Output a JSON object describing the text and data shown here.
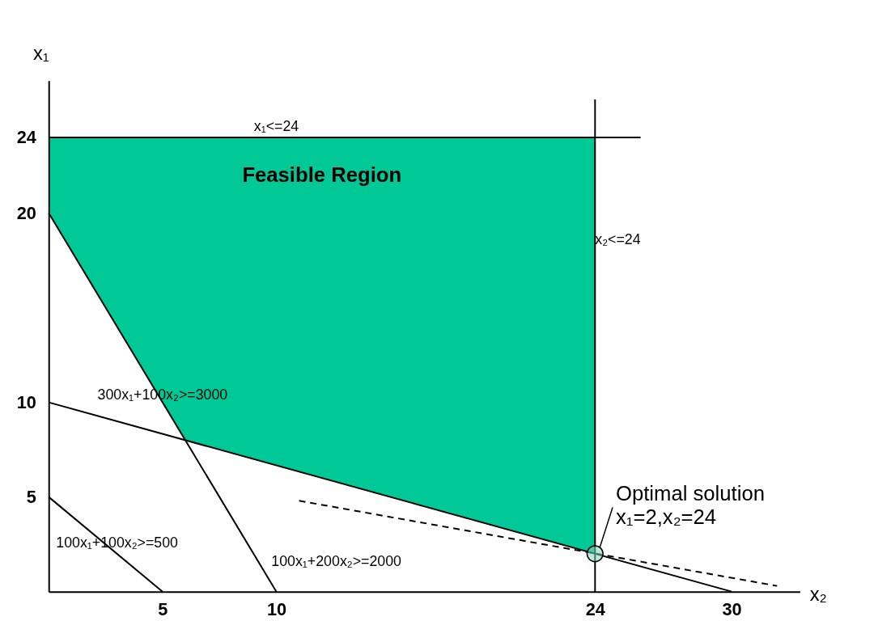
{
  "chart_data": {
    "type": "line",
    "xlabel": "x₂",
    "ylabel": "x₁",
    "xlim": [
      0,
      33
    ],
    "ylim": [
      0,
      27
    ],
    "xticks": [
      5,
      10,
      24,
      30
    ],
    "yticks": [
      5,
      10,
      20,
      24
    ],
    "grid": false,
    "series": [
      {
        "type": "area",
        "color": "#00c896",
        "x": [
          0,
          24
        ],
        "values": [
          24,
          24
        ]
      },
      {
        "type": "area",
        "color": "#ffffff",
        "x": [
          0,
          6,
          24
        ],
        "values": [
          20,
          8,
          2
        ]
      },
      {
        "color": "#000000",
        "x": [
          0,
          26
        ],
        "values": [
          24,
          24
        ]
      },
      {
        "color": "#000000",
        "x": [
          24,
          24
        ],
        "values": [
          0,
          26
        ]
      },
      {
        "color": "#000000",
        "x": [
          0,
          5
        ],
        "values": [
          5,
          0
        ]
      },
      {
        "color": "#000000",
        "x": [
          0,
          30
        ],
        "values": [
          10,
          0
        ]
      },
      {
        "color": "#000000",
        "x": [
          0,
          10
        ],
        "values": [
          20,
          0
        ]
      },
      {
        "color": "#000000",
        "line_style": "dashed",
        "x": [
          11,
          32
        ],
        "values": [
          4.8,
          0.3
        ]
      },
      {
        "type": "scatter",
        "marker": "circle",
        "color": "#7fd9bd",
        "x": [
          24
        ],
        "values": [
          2
        ]
      }
    ],
    "annotations": [
      {
        "text": "x₁<=24",
        "x": 10,
        "y": 24
      },
      {
        "text": "x₂<=24",
        "x": 24,
        "y": 18
      },
      "Feasible Region",
      {
        "text": "300x₁+100x₂>=3000",
        "x": 5,
        "y": 9.8
      },
      {
        "text": "100x₁+100x₂>=500",
        "x": 3,
        "y": 2
      },
      {
        "text": "100x₁+200x₂>=2000",
        "x": 9.5,
        "y": 1
      },
      {
        "text": "Optimal solution\nx₁=2,x₂=24",
        "x": 24,
        "y": 2
      }
    ]
  }
}
